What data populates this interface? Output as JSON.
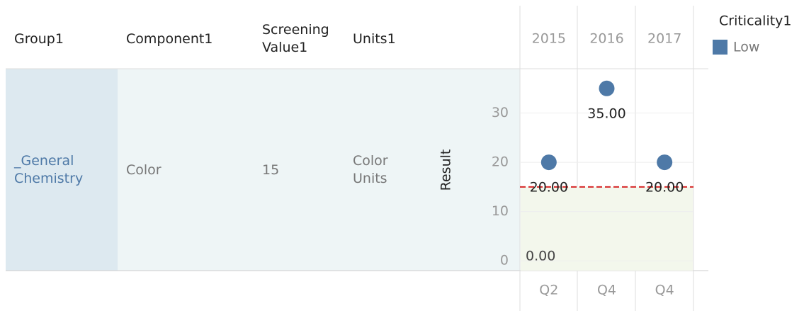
{
  "table": {
    "headers": [
      "Group1",
      "Component1",
      "Screening Value1",
      "Units1"
    ],
    "rows": [
      [
        "_General Chemistry",
        "Color",
        "15",
        "Color Units"
      ]
    ]
  },
  "chart_data": {
    "type": "scatter",
    "y_label": "Result",
    "categories": [
      "2015",
      "2016",
      "2017"
    ],
    "sub_categories": [
      "Q2",
      "Q4",
      "Q4"
    ],
    "values": [
      20,
      35,
      20
    ],
    "value_labels": [
      "20.00",
      "35.00",
      "20.00"
    ],
    "color": "#4e79a7",
    "ylim": [
      -2,
      39
    ],
    "yticks": [
      0,
      10,
      20,
      30
    ],
    "grid": true,
    "reference_line": 15,
    "reference_color": "#d62728",
    "band_color": "#f3f7ec",
    "band_label": "0.00",
    "legend": {
      "title": "Criticality1",
      "entries": [
        "Low"
      ]
    }
  }
}
